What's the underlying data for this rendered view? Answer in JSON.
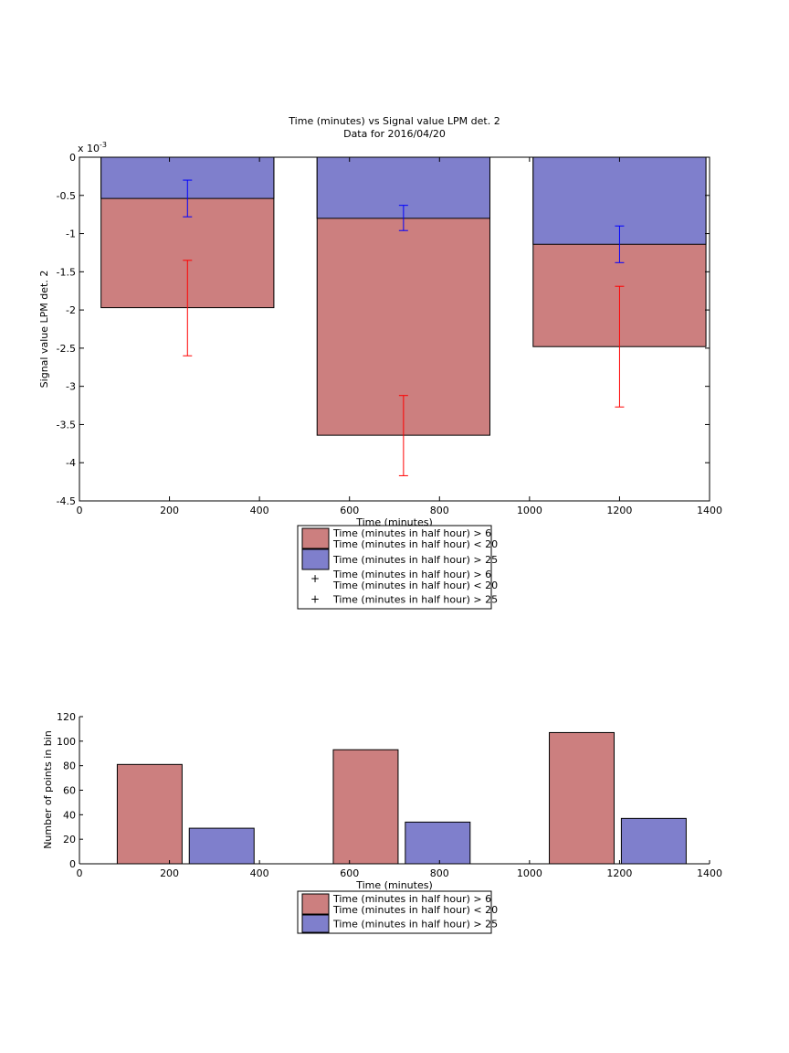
{
  "chart_data": [
    {
      "type": "bar",
      "title": "Time (minutes) vs Signal value LPM det. 2",
      "subtitle": "Data for 2016/04/20",
      "xlabel": "Time (minutes)",
      "ylabel": "Signal value LPM det. 2",
      "y_exponent_label": "x 10",
      "y_exponent_power": "-3",
      "xlim": [
        0,
        1400
      ],
      "ylim": [
        -4.5,
        0
      ],
      "xticks": [
        0,
        200,
        400,
        600,
        800,
        1000,
        1200,
        1400
      ],
      "yticks": [
        0,
        -0.5,
        -1,
        -1.5,
        -2,
        -2.5,
        -3,
        -3.5,
        -4,
        -4.5
      ],
      "ytick_labels": [
        "0",
        "-0.5",
        "-1",
        "-1.5",
        "-2",
        "-2.5",
        "-3",
        "-3.5",
        "-4",
        "-4.5"
      ],
      "bar_range_x": [
        [
          48,
          432
        ],
        [
          528,
          912
        ],
        [
          1008,
          1392
        ]
      ],
      "centers": [
        240,
        720,
        1200
      ],
      "series": [
        {
          "name": "Time (minutes in half hour) > 6 Time (minutes in half hour) < 20",
          "color": "#cc7f7f",
          "values": [
            -1.97,
            -3.64,
            -2.48
          ],
          "error_color": "#ff0000",
          "err_low": [
            -2.6,
            -4.17,
            -3.27
          ],
          "err_high": [
            -1.35,
            -3.12,
            -1.69
          ]
        },
        {
          "name": "Time (minutes in half hour) > 25",
          "color": "#7f7fcc",
          "values": [
            -0.54,
            -0.8,
            -1.14
          ],
          "error_color": "#0000ff",
          "err_low": [
            -0.78,
            -0.96,
            -1.38
          ],
          "err_high": [
            -0.3,
            -0.63,
            -0.9
          ]
        }
      ],
      "legend": {
        "placement": "below",
        "entries": [
          {
            "line1": "Time (minutes in half hour) > 6",
            "line2": "Time (minutes in half hour) < 20",
            "kind": "patch",
            "color": "#cc7f7f"
          },
          {
            "line1": "Time (minutes in half hour) > 25",
            "kind": "patch",
            "color": "#7f7fcc"
          },
          {
            "line1": "Time (minutes in half hour) > 6",
            "line2": "Time (minutes in half hour) < 20",
            "kind": "marker",
            "color": "#ff0000"
          },
          {
            "line1": "Time (minutes in half hour) > 25",
            "kind": "marker",
            "color": "#0000ff"
          }
        ]
      }
    },
    {
      "type": "bar",
      "xlabel": "Time (minutes)",
      "ylabel": "Number of points in bin",
      "xlim": [
        0,
        1400
      ],
      "ylim": [
        0,
        120
      ],
      "xticks": [
        0,
        200,
        400,
        600,
        800,
        1000,
        1200,
        1400
      ],
      "yticks": [
        0,
        20,
        40,
        60,
        80,
        100,
        120
      ],
      "series": [
        {
          "name": "Time (minutes in half hour) > 6 Time (minutes in half hour) < 20",
          "color": "#cc7f7f",
          "x_ranges": [
            [
              84,
              228
            ],
            [
              564,
              708
            ],
            [
              1044,
              1188
            ]
          ],
          "values": [
            81,
            93,
            107
          ]
        },
        {
          "name": "Time (minutes in half hour) > 25",
          "color": "#7f7fcc",
          "x_ranges": [
            [
              244,
              388
            ],
            [
              724,
              868
            ],
            [
              1204,
              1348
            ]
          ],
          "values": [
            29,
            34,
            37
          ]
        }
      ],
      "legend": {
        "placement": "below",
        "entries": [
          {
            "line1": "Time (minutes in half hour) > 6",
            "line2": "Time (minutes in half hour) < 20",
            "kind": "patch",
            "color": "#cc7f7f"
          },
          {
            "line1": "Time (minutes in half hour) > 25",
            "kind": "patch",
            "color": "#7f7fcc"
          }
        ]
      }
    }
  ]
}
